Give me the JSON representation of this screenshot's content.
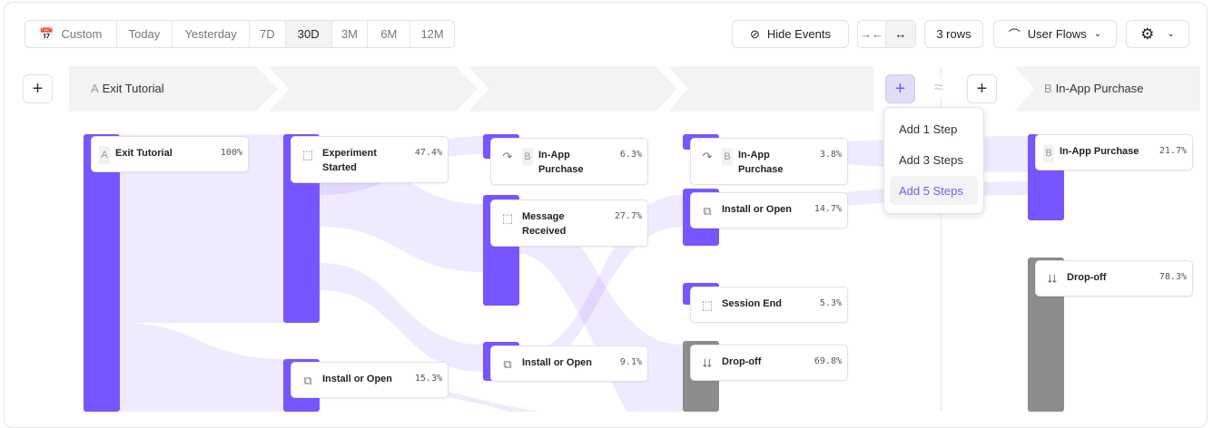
{
  "date_range": {
    "options": [
      "Custom",
      "Today",
      "Yesterday",
      "7D",
      "30D",
      "3M",
      "6M",
      "12M"
    ],
    "selected": "30D"
  },
  "toolbar": {
    "hide_events": "Hide Events",
    "rows": "3 rows",
    "view": "User Flows"
  },
  "headers": {
    "start_letter": "A",
    "start": "Exit Tutorial",
    "end_letter": "B",
    "end": "In-App Purchase",
    "gap_symbol": "≈"
  },
  "add_menu": {
    "items": [
      "Add 1 Step",
      "Add 3 Steps",
      "Add 5 Steps"
    ],
    "active": "Add 5 Steps"
  },
  "colors": {
    "accent": "#7856ff",
    "dropoff": "#8c8c8c",
    "flow": "#ece9fd"
  },
  "columns": [
    [
      {
        "letter": "A",
        "name": "Exit Tutorial",
        "pct": "100%"
      }
    ],
    [
      {
        "icon": "cursor-icon",
        "name": "Experiment Started",
        "pct": "47.4%"
      },
      {
        "icon": "copy-icon",
        "name": "Install or Open",
        "pct": "15.3%"
      }
    ],
    [
      {
        "icon": "redirect-icon",
        "letter": "B",
        "name": "In-App Purchase",
        "pct": "6.3%"
      },
      {
        "icon": "cursor-icon",
        "name": "Message Received",
        "pct": "27.7%"
      },
      {
        "icon": "copy-icon",
        "name": "Install or Open",
        "pct": "9.1%"
      }
    ],
    [
      {
        "icon": "redirect-icon",
        "letter": "B",
        "name": "In-App Purchase",
        "pct": "3.8%"
      },
      {
        "icon": "copy-icon",
        "name": "Install or Open",
        "pct": "14.7%"
      },
      {
        "icon": "cursor-icon",
        "name": "Session End",
        "pct": "5.3%"
      },
      {
        "icon": "dropoff-icon",
        "name": "Drop-off",
        "pct": "69.8%"
      }
    ],
    [
      {
        "letter": "B",
        "name": "In-App Purchase",
        "pct": "21.7%"
      },
      {
        "icon": "dropoff-icon",
        "name": "Drop-off",
        "pct": "78.3%"
      }
    ]
  ]
}
